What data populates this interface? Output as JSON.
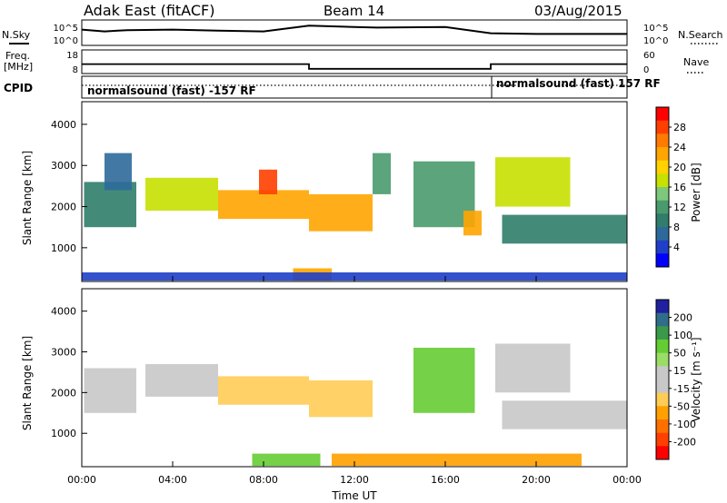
{
  "header": {
    "station": "Adak East (fitACF)",
    "beam": "Beam 14",
    "date": "03/Aug/2015"
  },
  "labels": {
    "nsky": "N.Sky",
    "nsearch": "N.Search",
    "freq": "Freq.",
    "mhz": "[MHz]",
    "nave": "Nave",
    "cpid": "CPID",
    "cpid_segments": [
      "normalsound (fast) -157 RF",
      "normalsound (fast) 157 RF"
    ],
    "noise_left_ticks": [
      "10^5",
      "10^0"
    ],
    "noise_right_ticks": [
      "10^5",
      "10^0"
    ],
    "freq_ticks": [
      "18",
      "8"
    ],
    "nave_ticks": [
      "60",
      "0"
    ],
    "ylabel": "Slant Range [km]",
    "xlabel": "Time UT",
    "range_ticks": [
      "4000",
      "3000",
      "2000",
      "1000"
    ],
    "time_ticks": [
      "00:00",
      "04:00",
      "08:00",
      "12:00",
      "16:00",
      "20:00",
      "00:00"
    ]
  },
  "power_colorbar": {
    "label": "Power [dB]",
    "ticks": [
      "28",
      "24",
      "20",
      "16",
      "12",
      "8",
      "4"
    ],
    "colors": [
      "#ff0000",
      "#ff3f00",
      "#ff7a00",
      "#ffa500",
      "#ffd200",
      "#c8e000",
      "#7dc87a",
      "#4a9a6e",
      "#2f7d6a",
      "#2d6a9a",
      "#1f3fc8",
      "#0000ff"
    ]
  },
  "velocity_colorbar": {
    "label": "Velocity [m s⁻¹]",
    "ticks": [
      "200",
      "100",
      "50",
      "15",
      "-15",
      "-50",
      "-100",
      "-200"
    ],
    "colors": [
      "#2020a0",
      "#2f6e8a",
      "#3a9a4a",
      "#66cc33",
      "#99dd66",
      "#c8c8c8",
      "#c8c8c8",
      "#ffcc55",
      "#ffa000",
      "#ff7000",
      "#ff4000",
      "#ff0000"
    ]
  },
  "chart_data": [
    {
      "type": "line",
      "name": "N.Sky / N.Search",
      "x_unit": "hours UT",
      "series": [
        {
          "x": [
            0,
            1,
            2,
            4,
            6,
            8,
            10,
            12,
            13,
            16,
            18,
            20,
            24
          ],
          "values": [
            0.62,
            0.55,
            0.6,
            0.62,
            0.58,
            0.55,
            0.78,
            0.72,
            0.7,
            0.72,
            0.48,
            0.45,
            0.45
          ]
        }
      ]
    },
    {
      "type": "line",
      "name": "Freq. / Nave",
      "x_unit": "hours UT",
      "series": [
        {
          "name": "Freq.",
          "x": [
            0,
            10,
            10,
            18,
            18,
            24
          ],
          "values": [
            12,
            12,
            10,
            10,
            12,
            12
          ]
        },
        {
          "name": "Nave",
          "x": [
            0,
            24
          ],
          "values": [
            3,
            3
          ]
        }
      ]
    },
    {
      "type": "heatmap",
      "title": "Power",
      "xlabel": "Time UT",
      "ylabel": "Slant Range [km]",
      "xlim": [
        0,
        24
      ],
      "ylim": [
        180,
        4550
      ],
      "colorbar": "Power [dB]",
      "regions": [
        {
          "t0": 0.1,
          "t1": 2.4,
          "r0": 1500,
          "r1": 2600,
          "power": 10
        },
        {
          "t0": 1.0,
          "t1": 2.2,
          "r0": 2400,
          "r1": 3300,
          "power": 8
        },
        {
          "t0": 2.8,
          "t1": 6.0,
          "r0": 1900,
          "r1": 2700,
          "power": 18
        },
        {
          "t0": 6.0,
          "t1": 10.0,
          "r0": 1700,
          "r1": 2400,
          "power": 24
        },
        {
          "t0": 7.8,
          "t1": 8.6,
          "r0": 2300,
          "r1": 2900,
          "power": 28
        },
        {
          "t0": 10.0,
          "t1": 12.8,
          "r0": 1400,
          "r1": 2300,
          "power": 24
        },
        {
          "t0": 12.8,
          "t1": 13.6,
          "r0": 2300,
          "r1": 3300,
          "power": 14
        },
        {
          "t0": 14.6,
          "t1": 17.3,
          "r0": 1500,
          "r1": 3100,
          "power": 14
        },
        {
          "t0": 16.8,
          "t1": 17.6,
          "r0": 1300,
          "r1": 1900,
          "power": 24
        },
        {
          "t0": 18.2,
          "t1": 21.5,
          "r0": 2000,
          "r1": 3200,
          "power": 18
        },
        {
          "t0": 18.5,
          "t1": 24.0,
          "r0": 1100,
          "r1": 1800,
          "power": 10
        },
        {
          "t0": 9.3,
          "t1": 11.0,
          "r0": 200,
          "r1": 500,
          "power": 24
        },
        {
          "t0": 0.0,
          "t1": 24.0,
          "r0": 200,
          "r1": 400,
          "power": 6
        }
      ]
    },
    {
      "type": "heatmap",
      "title": "Velocity",
      "xlabel": "Time UT",
      "ylabel": "Slant Range [km]",
      "xlim": [
        0,
        24
      ],
      "ylim": [
        180,
        4550
      ],
      "colorbar": "Velocity [m s^-1]",
      "regions": [
        {
          "t0": 0.1,
          "t1": 2.4,
          "r0": 1500,
          "r1": 2600,
          "velocity": 0
        },
        {
          "t0": 2.8,
          "t1": 6.0,
          "r0": 1900,
          "r1": 2700,
          "velocity": 0
        },
        {
          "t0": 6.0,
          "t1": 10.0,
          "r0": 1700,
          "r1": 2400,
          "velocity": -20
        },
        {
          "t0": 10.0,
          "t1": 12.8,
          "r0": 1400,
          "r1": 2300,
          "velocity": -30
        },
        {
          "t0": 14.6,
          "t1": 17.3,
          "r0": 1500,
          "r1": 3100,
          "velocity": 60
        },
        {
          "t0": 18.2,
          "t1": 21.5,
          "r0": 2000,
          "r1": 3200,
          "velocity": 0
        },
        {
          "t0": 18.5,
          "t1": 24.0,
          "r0": 1100,
          "r1": 1800,
          "velocity": 0
        },
        {
          "t0": 7.5,
          "t1": 10.5,
          "r0": 200,
          "r1": 500,
          "velocity": 60
        },
        {
          "t0": 11.0,
          "t1": 22.0,
          "r0": 200,
          "r1": 500,
          "velocity": -40
        }
      ]
    }
  ]
}
